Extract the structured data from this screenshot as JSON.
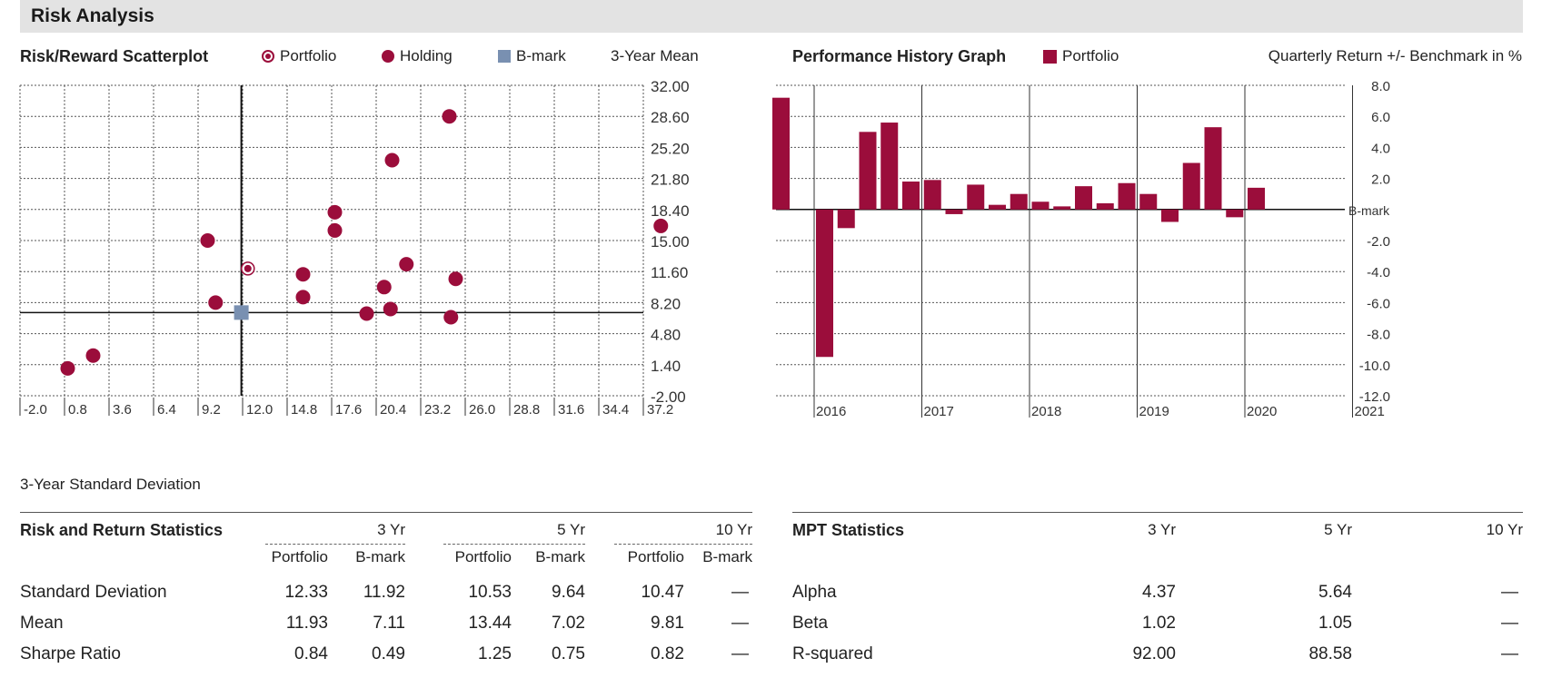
{
  "header": {
    "title": "Risk Analysis"
  },
  "scatter": {
    "title": "Risk/Reward Scatterplot",
    "legend": {
      "portfolio": "Portfolio",
      "holding": "Holding",
      "bmark": "B-mark",
      "mean": "3-Year Mean"
    },
    "xlabel": "3-Year Standard Deviation"
  },
  "performance": {
    "title": "Performance History Graph",
    "legend_portfolio": "Portfolio",
    "subtitle": "Quarterly Return +/- Benchmark in %"
  },
  "colors": {
    "portfolio": "#9b0d3b",
    "benchmark": "#7990b1"
  },
  "chart_data": [
    {
      "type": "scatter",
      "title": "Risk/Reward Scatterplot",
      "xlabel": "3-Year Standard Deviation",
      "ylabel": "3-Year Mean",
      "xlim": [
        -2.0,
        37.2
      ],
      "ylim": [
        -2.0,
        32.0
      ],
      "x_ticks": [
        "-2.0",
        "0.8",
        "3.6",
        "6.4",
        "9.2",
        "12.0",
        "14.8",
        "17.6",
        "20.4",
        "23.2",
        "26.0",
        "28.8",
        "31.6",
        "34.4",
        "37.2"
      ],
      "y_ticks": [
        "32.00",
        "28.60",
        "25.20",
        "21.80",
        "18.40",
        "15.00",
        "11.60",
        "8.20",
        "4.80",
        "1.40",
        "-2.00"
      ],
      "y_tick_values": [
        32.0,
        28.6,
        25.2,
        21.8,
        18.4,
        15.0,
        11.6,
        8.2,
        4.8,
        1.4,
        -2.0
      ],
      "grid": true,
      "legend_position": "top",
      "series": [
        {
          "name": "Portfolio",
          "points": [
            [
              12.33,
              11.93
            ]
          ]
        },
        {
          "name": "Holding",
          "points": [
            [
              1.0,
              1.0
            ],
            [
              2.6,
              2.4
            ],
            [
              9.8,
              15.0
            ],
            [
              10.3,
              8.2
            ],
            [
              15.8,
              11.3
            ],
            [
              15.8,
              8.8
            ],
            [
              17.8,
              18.1
            ],
            [
              17.8,
              16.1
            ],
            [
              19.8,
              7.0
            ],
            [
              20.9,
              9.9
            ],
            [
              21.3,
              7.5
            ],
            [
              21.4,
              23.8
            ],
            [
              22.3,
              12.4
            ],
            [
              25.0,
              28.6
            ],
            [
              25.1,
              6.6
            ],
            [
              25.4,
              10.8
            ],
            [
              38.3,
              16.6
            ]
          ]
        },
        {
          "name": "B-mark",
          "points": [
            [
              11.92,
              7.11
            ]
          ]
        }
      ]
    },
    {
      "type": "bar",
      "title": "Performance History Graph",
      "ylabel": "Quarterly Return +/- Benchmark in %",
      "ylim": [
        -12.0,
        8.0
      ],
      "y_ticks": [
        "8.0",
        "6.0",
        "4.0",
        "2.0",
        "B-mark",
        "-2.0",
        "-4.0",
        "-6.0",
        "-8.0",
        "-10.0",
        "-12.0"
      ],
      "y_tick_values": [
        8,
        6,
        4,
        2,
        0,
        -2,
        -4,
        -6,
        -8,
        -10,
        -12
      ],
      "year_labels": [
        "2016",
        "2017",
        "2018",
        "2019",
        "2020",
        "2021"
      ],
      "grid": true,
      "series": [
        {
          "name": "Portfolio",
          "values": [
            7.2,
            -9.5,
            -1.2,
            5.0,
            5.6,
            1.8,
            1.9,
            -0.3,
            1.6,
            0.3,
            1.0,
            0.5,
            0.2,
            1.5,
            0.4,
            1.7,
            1.0,
            -0.8,
            3.0,
            5.3,
            -0.5,
            1.4
          ]
        }
      ]
    }
  ],
  "risk_return": {
    "title": "Risk and Return Statistics",
    "periods": [
      "3 Yr",
      "5 Yr",
      "10 Yr"
    ],
    "subheaders": [
      "Portfolio",
      "B-mark"
    ],
    "rows": [
      {
        "label": "Standard Deviation",
        "values": [
          "12.33",
          "11.92",
          "10.53",
          "9.64",
          "10.47",
          "—"
        ]
      },
      {
        "label": "Mean",
        "values": [
          "11.93",
          "7.11",
          "13.44",
          "7.02",
          "9.81",
          "—"
        ]
      },
      {
        "label": "Sharpe Ratio",
        "values": [
          "0.84",
          "0.49",
          "1.25",
          "0.75",
          "0.82",
          "—"
        ]
      }
    ]
  },
  "mpt": {
    "title": "MPT Statistics",
    "periods": [
      "3 Yr",
      "5 Yr",
      "10 Yr"
    ],
    "rows": [
      {
        "label": "Alpha",
        "values": [
          "4.37",
          "5.64",
          "—"
        ]
      },
      {
        "label": "Beta",
        "values": [
          "1.02",
          "1.05",
          "—"
        ]
      },
      {
        "label": "R-squared",
        "values": [
          "92.00",
          "88.58",
          "—"
        ]
      }
    ]
  }
}
